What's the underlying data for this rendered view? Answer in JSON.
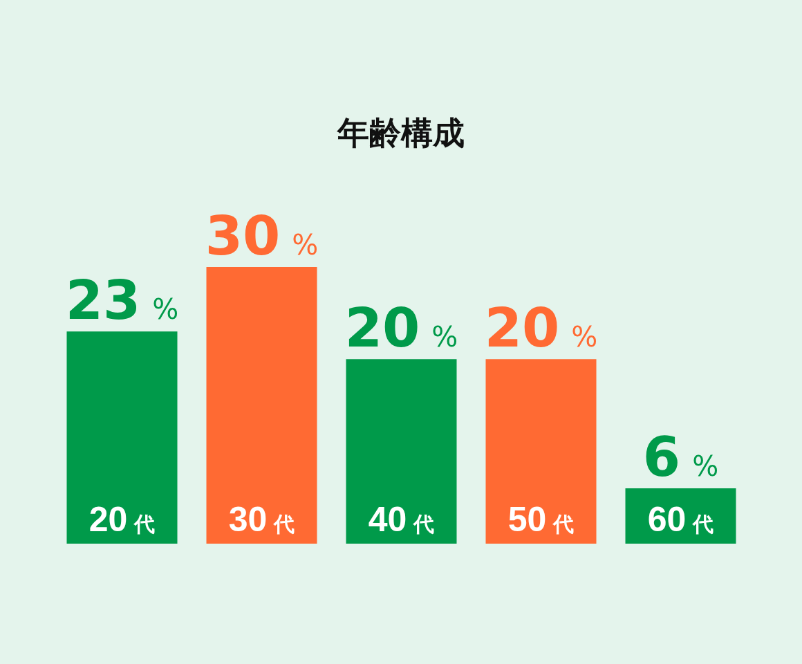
{
  "chart_data": {
    "type": "bar",
    "title": "年齢構成",
    "categories": [
      "20代",
      "30代",
      "40代",
      "50代",
      "60代"
    ],
    "values": [
      23,
      30,
      20,
      20,
      6
    ],
    "colors": [
      "#009a4a",
      "#ff6a33",
      "#009a4a",
      "#ff6a33",
      "#009a4a"
    ],
    "value_labels": [
      "23%",
      "30%",
      "20%",
      "20%",
      "6%"
    ]
  }
}
